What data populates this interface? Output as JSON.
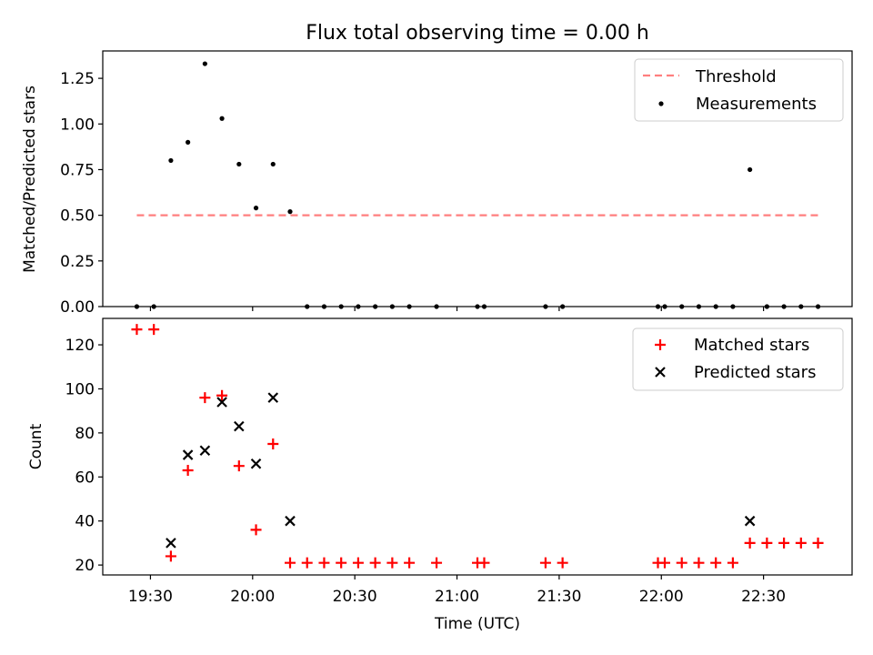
{
  "figure": {
    "title": "Flux total observing time = 0.00 h"
  },
  "chart_data": [
    {
      "type": "scatter",
      "title": "Flux total observing time = 0.00 h",
      "xlabel": "",
      "ylabel": "Matched/Predicted stars",
      "xlim": [
        "19:16",
        "22:56"
      ],
      "ylim": [
        0,
        1.4
      ],
      "x_ticks": [
        "19:30",
        "20:00",
        "20:30",
        "21:00",
        "21:30",
        "22:00",
        "22:30"
      ],
      "y_ticks": [
        "0.00",
        "0.25",
        "0.50",
        "0.75",
        "1.00",
        "1.25"
      ],
      "legend_position": "top-right",
      "series": [
        {
          "name": "Threshold",
          "kind": "dashed-line",
          "color": "#ff7f7f",
          "x": [
            "19:26",
            "22:46"
          ],
          "y": [
            0.5,
            0.5
          ]
        },
        {
          "name": "Measurements",
          "kind": "dots",
          "color": "#000000",
          "x": [
            "19:26",
            "19:31",
            "19:36",
            "19:41",
            "19:46",
            "19:51",
            "19:56",
            "20:01",
            "20:06",
            "20:11",
            "20:16",
            "20:21",
            "20:26",
            "20:31",
            "20:36",
            "20:41",
            "20:46",
            "20:54",
            "21:06",
            "21:08",
            "21:26",
            "21:31",
            "21:59",
            "22:01",
            "22:06",
            "22:11",
            "22:16",
            "22:21",
            "22:26",
            "22:31",
            "22:36",
            "22:41",
            "22:46"
          ],
          "y": [
            0,
            0,
            0.8,
            0.9,
            1.33,
            1.03,
            0.78,
            0.54,
            0.78,
            0.52,
            0,
            0,
            0,
            0,
            0,
            0,
            0,
            0,
            0,
            0,
            0,
            0,
            0,
            0,
            0,
            0,
            0,
            0,
            0.75,
            0,
            0,
            0,
            0
          ]
        }
      ]
    },
    {
      "type": "scatter",
      "title": "",
      "xlabel": "Time (UTC)",
      "ylabel": "Count",
      "xlim": [
        "19:16",
        "22:56"
      ],
      "ylim": [
        15.5,
        132
      ],
      "x_ticks": [
        "19:30",
        "20:00",
        "20:30",
        "21:00",
        "21:30",
        "22:00",
        "22:30"
      ],
      "y_ticks": [
        "20",
        "40",
        "60",
        "80",
        "100",
        "120"
      ],
      "legend_position": "top-right",
      "series": [
        {
          "name": "Matched stars",
          "marker": "+",
          "color": "#ff0000",
          "x": [
            "19:26",
            "19:31",
            "19:36",
            "19:41",
            "19:46",
            "19:51",
            "19:56",
            "20:01",
            "20:06",
            "20:11",
            "20:16",
            "20:21",
            "20:26",
            "20:31",
            "20:36",
            "20:41",
            "20:46",
            "20:54",
            "21:06",
            "21:08",
            "21:26",
            "21:31",
            "21:59",
            "22:01",
            "22:06",
            "22:11",
            "22:16",
            "22:21",
            "22:26",
            "22:31",
            "22:36",
            "22:41",
            "22:46"
          ],
          "y": [
            127,
            127,
            24,
            63,
            96,
            97,
            65,
            36,
            75,
            21,
            21,
            21,
            21,
            21,
            21,
            21,
            21,
            21,
            21,
            21,
            21,
            21,
            21,
            21,
            21,
            21,
            21,
            21,
            30,
            30,
            30,
            30,
            30
          ]
        },
        {
          "name": "Predicted stars",
          "marker": "x",
          "color": "#000000",
          "x": [
            "19:36",
            "19:41",
            "19:46",
            "19:51",
            "19:56",
            "20:01",
            "20:06",
            "20:11",
            "22:26"
          ],
          "y": [
            30,
            70,
            72,
            94,
            83,
            66,
            96,
            40,
            40
          ]
        }
      ]
    }
  ]
}
